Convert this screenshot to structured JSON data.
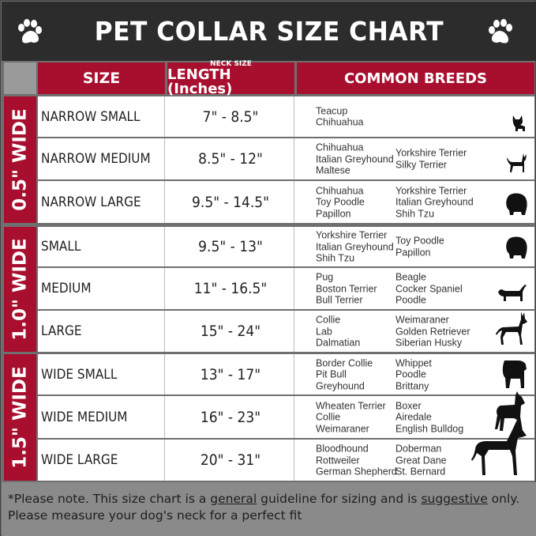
{
  "title": "PET COLLAR SIZE CHART",
  "icons": {
    "paw": "paw-icon"
  },
  "colors": {
    "header_bg": "#2c2c2c",
    "accent_red": "#a80e2e",
    "footer_bg": "#8a8a8a"
  },
  "headers": {
    "size": "SIZE",
    "neck_small": "NECK SIZE",
    "length": "LENGTH (Inches)",
    "breeds": "COMMON BREEDS"
  },
  "groups": [
    {
      "label": "0.5\" WIDE"
    },
    {
      "label": "1.0\" WIDE"
    },
    {
      "label": "1.5\" WIDE"
    }
  ],
  "rows": [
    {
      "size": "NARROW SMALL",
      "length": "7\" - 8.5\"",
      "breeds_left": [
        "Teacup",
        "Chihuahua"
      ],
      "breeds_right": [],
      "dog": "yorkie-silhouette-icon"
    },
    {
      "size": "NARROW MEDIUM",
      "length": "8.5\" - 12\"",
      "breeds_left": [
        "Chihuahua",
        "Italian Greyhound",
        "Maltese"
      ],
      "breeds_right": [
        "Yorkshire Terrier",
        "Silky Terrier"
      ],
      "dog": "chihuahua-silhouette-icon"
    },
    {
      "size": "NARROW LARGE",
      "length": "9.5\" - 14.5\"",
      "breeds_left": [
        "Chihuahua",
        "Toy Poodle",
        "Papillon"
      ],
      "breeds_right": [
        "Yorkshire Terrier",
        "Italian Greyhound",
        "Shih Tzu"
      ],
      "dog": "pomeranian-silhouette-icon"
    },
    {
      "size": "SMALL",
      "length": "9.5\" - 13\"",
      "breeds_left": [
        "Yorkshire Terrier",
        "Italian Greyhound",
        "Shih Tzu"
      ],
      "breeds_right": [
        "Toy Poodle",
        "Papillon"
      ],
      "dog": "pomeranian-silhouette-icon"
    },
    {
      "size": "MEDIUM",
      "length": "11\" - 16.5\"",
      "breeds_left": [
        "Pug",
        "Boston Terrier",
        "Bull Terrier"
      ],
      "breeds_right": [
        "Beagle",
        "Cocker Spaniel",
        "Poodle"
      ],
      "dog": "dachshund-silhouette-icon"
    },
    {
      "size": "LARGE",
      "length": "15\" - 24\"",
      "breeds_left": [
        "Collie",
        "Lab",
        "Dalmatian"
      ],
      "breeds_right": [
        "Weimaraner",
        "Golden Retriever",
        "Siberian Husky"
      ],
      "dog": "shepherd-silhouette-icon"
    },
    {
      "size": "WIDE SMALL",
      "length": "13\" - 17\"",
      "breeds_left": [
        "Border Collie",
        "Pit Bull",
        "Greyhound"
      ],
      "breeds_right": [
        "Whippet",
        "Poodle",
        "Brittany"
      ],
      "dog": "bulldog-silhouette-icon"
    },
    {
      "size": "WIDE MEDIUM",
      "length": "16\" - 23\"",
      "breeds_left": [
        "Wheaten Terrier",
        "Collie",
        "Weimaraner"
      ],
      "breeds_right": [
        "Boxer",
        "Airedale",
        "English Bulldog"
      ],
      "dog": "pitbull-silhouette-icon"
    },
    {
      "size": "WIDE LARGE",
      "length": "20\" - 31\"",
      "breeds_left": [
        "Bloodhound",
        "Rottweiler",
        "German Shepherd"
      ],
      "breeds_right": [
        "Doberman",
        "Great Dane",
        "St. Bernard"
      ],
      "dog": "doberman-silhouette-icon"
    }
  ],
  "footer": {
    "p1": "*Please note. This size chart is a ",
    "u1": "general",
    "p2": " guideline for sizing and is ",
    "u2": "suggestive",
    "p3": " only.",
    "line2": "Please measure your dog's neck for a perfect fit"
  }
}
